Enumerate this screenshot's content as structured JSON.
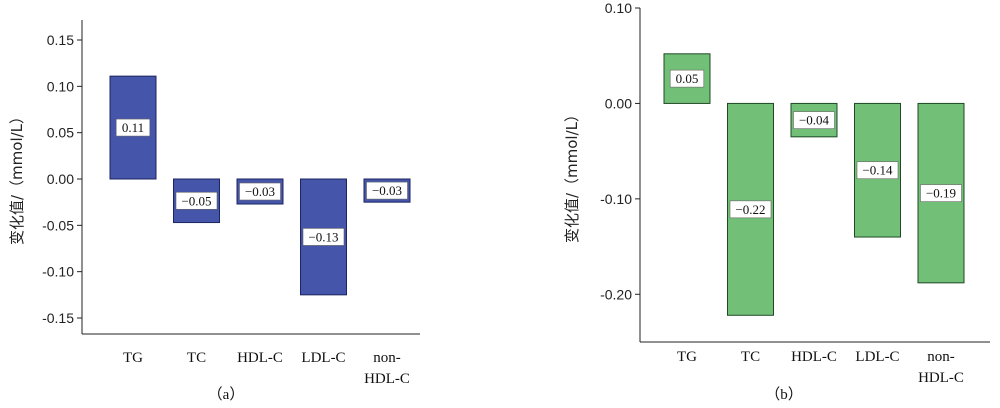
{
  "chart_data": [
    {
      "type": "bar",
      "caption": "（a）",
      "ylabel": "变化值/（mmol/L）",
      "categories": [
        [
          "TG"
        ],
        [
          "TC"
        ],
        [
          "HDL-C"
        ],
        [
          "LDL-C"
        ],
        [
          "non-",
          "HDL-C"
        ]
      ],
      "values": [
        0.11,
        -0.05,
        -0.03,
        -0.13,
        -0.03
      ],
      "plot_values": [
        0.111,
        -0.047,
        -0.027,
        -0.125,
        -0.025
      ],
      "data_labels": [
        "0.11",
        "−0.05",
        "−0.03",
        "−0.13",
        "−0.03"
      ],
      "ylim": [
        -0.15,
        0.15
      ],
      "yticks": [
        "0.15",
        "0.10",
        "0.05",
        "0.00",
        "-0.05",
        "-0.10",
        "-0.15"
      ],
      "ytick_values": [
        0.15,
        0.1,
        0.05,
        0,
        -0.05,
        -0.1,
        -0.15
      ],
      "grid": false,
      "colors": {
        "bar_fill": "#4455aa",
        "bar_stroke": "#1c2560"
      }
    },
    {
      "type": "bar",
      "caption": "（b）",
      "ylabel": "变化值/（mmol/L）",
      "categories": [
        [
          "TG"
        ],
        [
          "TC"
        ],
        [
          "HDL-C"
        ],
        [
          "LDL-C"
        ],
        [
          "non-",
          "HDL-C"
        ]
      ],
      "values": [
        0.05,
        -0.22,
        -0.04,
        -0.14,
        -0.19
      ],
      "plot_values": [
        0.052,
        -0.222,
        -0.035,
        -0.14,
        -0.188
      ],
      "data_labels": [
        "0.05",
        "−0.22",
        "−0.04",
        "−0.14",
        "−0.19"
      ],
      "ylim": [
        -0.25,
        0.1
      ],
      "yticks": [
        "0.10",
        "0.00",
        "-0.10",
        "-0.20"
      ],
      "ytick_values": [
        0.1,
        0,
        -0.1,
        -0.2
      ],
      "grid": false,
      "colors": {
        "bar_fill": "#72bf78",
        "bar_stroke": "#1f4a24"
      }
    }
  ]
}
